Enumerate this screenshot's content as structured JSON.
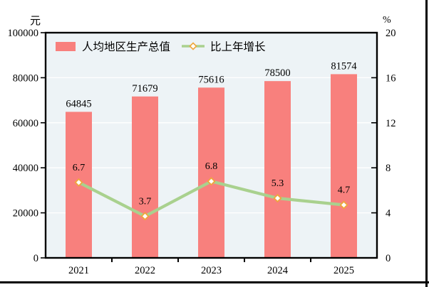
{
  "figure": {
    "left_unit": "元",
    "right_unit": "%"
  },
  "legend": {
    "bar_label": "人均地区生产总值",
    "line_label": "比上年增长"
  },
  "chart_data": {
    "type": "bar+line",
    "categories": [
      "2021",
      "2022",
      "2023",
      "2024",
      "2025"
    ],
    "series": [
      {
        "name": "人均地区生产总值",
        "type": "bar",
        "axis": "left",
        "values": [
          64845,
          71679,
          75616,
          78500,
          81574
        ],
        "color": "#F8807D"
      },
      {
        "name": "比上年增长",
        "type": "line",
        "axis": "right",
        "values": [
          6.7,
          3.7,
          6.8,
          5.3,
          4.7
        ],
        "color": "#A9D18E",
        "marker_fill": "#FFFFFF",
        "marker_stroke": "#EFA63C"
      }
    ],
    "left_axis": {
      "label": "元",
      "min": 0,
      "max": 100000,
      "ticks": [
        "0",
        "20000",
        "40000",
        "60000",
        "80000",
        "100000"
      ]
    },
    "right_axis": {
      "label": "%",
      "min": 0,
      "max": 20,
      "ticks": [
        "0",
        "4",
        "8",
        "12",
        "16",
        "20"
      ]
    },
    "plot_bg": "#EDF3F6",
    "grid_color": "#FFFFFF",
    "grid": true,
    "legend_position": "top-left-inside"
  }
}
